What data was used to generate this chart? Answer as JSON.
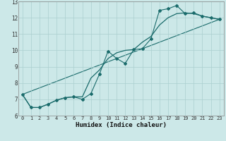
{
  "xlabel": "Humidex (Indice chaleur)",
  "xlim": [
    -0.5,
    23.5
  ],
  "ylim": [
    6,
    13
  ],
  "yticks": [
    6,
    7,
    8,
    9,
    10,
    11,
    12,
    13
  ],
  "xticks": [
    0,
    1,
    2,
    3,
    4,
    5,
    6,
    7,
    8,
    9,
    10,
    11,
    12,
    13,
    14,
    15,
    16,
    17,
    18,
    19,
    20,
    21,
    22,
    23
  ],
  "bg_color": "#cce8e8",
  "grid_color": "#aacfcf",
  "line_color": "#1a6b6b",
  "series1_x": [
    0,
    1,
    2,
    3,
    4,
    5,
    6,
    7,
    8,
    9,
    10,
    11,
    12,
    13,
    14,
    15,
    16,
    17,
    18,
    19,
    20,
    21,
    22,
    23
  ],
  "series1_y": [
    7.3,
    6.5,
    6.5,
    6.7,
    6.95,
    7.1,
    7.15,
    7.0,
    7.35,
    8.55,
    9.95,
    9.5,
    9.2,
    10.05,
    10.1,
    10.7,
    12.45,
    12.55,
    12.75,
    12.25,
    12.3,
    12.1,
    12.0,
    11.9
  ],
  "series2_x": [
    0,
    1,
    2,
    3,
    4,
    5,
    6,
    7,
    8,
    9,
    10,
    11,
    12,
    13,
    14,
    15,
    16,
    17,
    18,
    19,
    20,
    21,
    22,
    23
  ],
  "series2_y": [
    7.3,
    6.5,
    6.5,
    6.7,
    6.95,
    7.1,
    7.15,
    7.15,
    8.3,
    8.8,
    9.5,
    9.85,
    10.0,
    10.05,
    10.5,
    10.85,
    11.55,
    12.0,
    12.25,
    12.3,
    12.25,
    12.1,
    12.0,
    11.9
  ],
  "series3_x": [
    0,
    23
  ],
  "series3_y": [
    7.3,
    11.9
  ],
  "tick_fontsize": 5.5,
  "xlabel_fontsize": 6.5
}
